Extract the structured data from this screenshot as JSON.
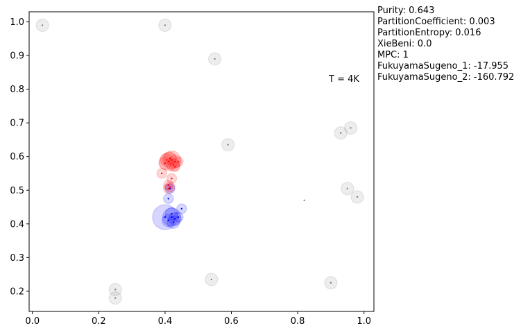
{
  "metrics": {
    "purity": "Purity: 0.643",
    "partition_coefficient": "PartitionCoefficient: 0.003",
    "partition_entropy": "PartitionEntropy: 0.016",
    "xie_beni": "XieBeni: 0.0",
    "mpc": "MPC: 1",
    "fukuyama_sugeno_1": "FukuyamaSugeno_1: -17.955",
    "fukuyama_sugeno_2": "FukuyamaSugeno_2: -160.792"
  },
  "chart_data": {
    "type": "scatter",
    "annotation": "T = 4K",
    "xlim": [
      -0.01,
      1.03
    ],
    "ylim": [
      0.14,
      1.03
    ],
    "xticks": [
      "0.0",
      "0.2",
      "0.4",
      "0.6",
      "0.8",
      "1.0"
    ],
    "yticks": [
      "0.2",
      "0.3",
      "0.4",
      "0.5",
      "0.6",
      "0.7",
      "0.8",
      "0.9",
      "1.0"
    ],
    "grid": false,
    "colors": {
      "red": "#ff0000",
      "blue": "#0000ff",
      "gray": "#808080"
    },
    "series": [
      {
        "color": "gray",
        "x": [
          0.03,
          0.4,
          0.55,
          0.59,
          0.93,
          0.96,
          0.95,
          0.98,
          0.82,
          0.25,
          0.25,
          0.54,
          0.9
        ],
        "y": [
          0.99,
          0.99,
          0.89,
          0.635,
          0.67,
          0.685,
          0.505,
          0.48,
          0.47,
          0.205,
          0.18,
          0.235,
          0.225
        ],
        "sizes": [
          2,
          2,
          2,
          2,
          2,
          2,
          2,
          2,
          0,
          2,
          2,
          2,
          2
        ]
      },
      {
        "color": "red",
        "x": [
          0.41,
          0.42,
          0.4,
          0.43,
          0.415,
          0.425,
          0.405,
          0.44,
          0.39,
          0.42,
          0.41,
          0.41,
          0.415,
          0.43
        ],
        "y": [
          0.585,
          0.59,
          0.58,
          0.585,
          0.595,
          0.575,
          0.59,
          0.585,
          0.55,
          0.535,
          0.515,
          0.505,
          0.51,
          0.57
        ],
        "sizes": [
          3,
          3,
          2,
          2,
          2,
          2,
          2,
          1,
          1,
          1,
          1,
          1,
          1,
          1
        ]
      },
      {
        "color": "blue",
        "x": [
          0.4,
          0.42,
          0.43,
          0.41,
          0.425,
          0.45,
          0.41,
          0.415,
          0.42,
          0.44
        ],
        "y": [
          0.42,
          0.42,
          0.415,
          0.41,
          0.405,
          0.445,
          0.475,
          0.505,
          0.43,
          0.42
        ],
        "sizes": [
          4,
          3,
          2,
          2,
          2,
          1,
          1,
          1,
          2,
          1
        ]
      }
    ]
  }
}
